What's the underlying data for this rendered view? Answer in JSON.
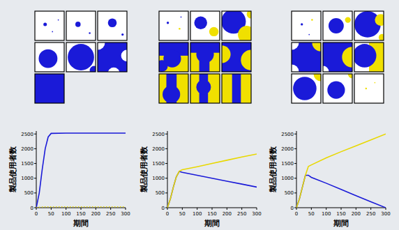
{
  "chart_data": [
    {
      "type": "line",
      "x_label": "期間",
      "y_label": "製品使用者数",
      "x": [
        0,
        10,
        20,
        30,
        40,
        50,
        100,
        150,
        200,
        250,
        300
      ],
      "xlim": [
        0,
        300
      ],
      "xticks": [
        0,
        50,
        100,
        150,
        200,
        250,
        300
      ],
      "ylim": [
        0,
        2600
      ],
      "yticks": [
        0,
        500,
        1000,
        1500,
        2000,
        2500
      ],
      "series": [
        {
          "color": "#1a1ad8",
          "values": [
            0,
            500,
            1300,
            2000,
            2400,
            2520,
            2530,
            2530,
            2530,
            2530,
            2530
          ]
        },
        {
          "color": "#e8d800",
          "line_style": "dotted",
          "values": [
            0,
            15,
            25,
            30,
            30,
            30,
            30,
            30,
            30,
            30,
            30
          ]
        }
      ]
    },
    {
      "type": "line",
      "x_label": "期間",
      "y_label": "製品使用者数",
      "x": [
        0,
        10,
        20,
        30,
        40,
        50,
        100,
        150,
        200,
        250,
        300
      ],
      "xlim": [
        0,
        300
      ],
      "xticks": [
        0,
        50,
        100,
        150,
        200,
        250,
        300
      ],
      "ylim": [
        0,
        2600
      ],
      "yticks": [
        0,
        500,
        1000,
        1500,
        2000,
        2500
      ],
      "series": [
        {
          "color": "#1a1ad8",
          "values": [
            0,
            300,
            700,
            1050,
            1230,
            1200,
            1100,
            1000,
            900,
            800,
            700
          ]
        },
        {
          "color": "#e8d800",
          "values": [
            0,
            300,
            700,
            1050,
            1240,
            1290,
            1390,
            1500,
            1610,
            1720,
            1820
          ]
        }
      ]
    },
    {
      "type": "line",
      "x_label": "期間",
      "y_label": "製品使用者数",
      "x": [
        0,
        10,
        20,
        30,
        40,
        50,
        100,
        150,
        200,
        250,
        300
      ],
      "xlim": [
        0,
        300
      ],
      "xticks": [
        0,
        50,
        100,
        150,
        200,
        250,
        300
      ],
      "ylim": [
        0,
        2600
      ],
      "yticks": [
        0,
        500,
        1000,
        1500,
        2000,
        2500
      ],
      "series": [
        {
          "color": "#1a1ad8",
          "values": [
            0,
            300,
            700,
            1100,
            1100,
            1030,
            830,
            620,
            410,
            200,
            0
          ]
        },
        {
          "color": "#e8d800",
          "values": [
            0,
            300,
            700,
            1100,
            1400,
            1450,
            1690,
            1900,
            2100,
            2300,
            2500
          ]
        }
      ]
    }
  ]
}
